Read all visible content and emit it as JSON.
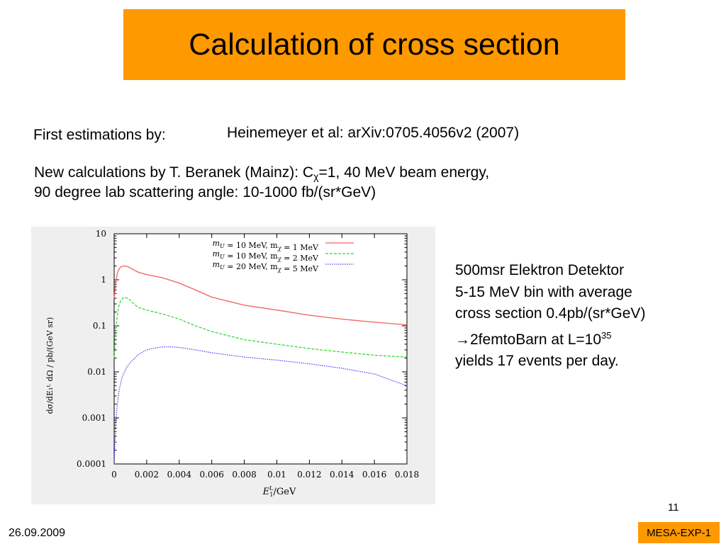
{
  "slide": {
    "title": "Calculation of cross section",
    "first_estimations_label": "First estimations by:",
    "first_estimations_ref": "Heinemeyer et al: arXiv:0705.4056v2 (2007)",
    "new_calc_line1_pre": "New calculations by T. Beranek (Mainz): C",
    "new_calc_sub": "χ",
    "new_calc_line1_post": "=1, 40 MeV beam energy,",
    "new_calc_line2": "90 degree lab scattering angle: 10-1000 fb/(sr*GeV)",
    "note_line1": "500msr Elektron  Detektor",
    "note_line2": "5-15 MeV bin with average",
    "note_line3": "cross section 0.4pb/(sr*GeV)",
    "note_arrow": "→",
    "note_line4_pre": "2femtoBarn at L=10",
    "note_line4_sup": "35",
    "note_line5": "yields 17 events per day.",
    "page_number": "11",
    "date": "26.09.2009",
    "tag": "MESA-EXP-1"
  },
  "chart_data": {
    "type": "line",
    "xlabel_main": "E",
    "xlabel_sup": "L",
    "xlabel_sub": "1",
    "xlabel_unit": "/GeV",
    "ylabel": "dσ/dE₁ᴸ dΩ / pb/(GeV sr)",
    "log_y": true,
    "xlim": [
      0,
      0.018
    ],
    "ylim": [
      0.0001,
      10
    ],
    "x_ticks": [
      "0",
      "0.002",
      "0.004",
      "0.006",
      "0.008",
      "0.01",
      "0.012",
      "0.014",
      "0.016",
      "0.018"
    ],
    "y_ticks": [
      "0.0001",
      "0.001",
      "0.01",
      "0.1",
      "1",
      "10"
    ],
    "legend_position": "top-right",
    "series": [
      {
        "name": "mU = 10 MeV, mχ = 1 MeV",
        "name_parts": [
          "m",
          "U",
          " = 10 MeV,  m",
          "χ",
          " = 1 MeV"
        ],
        "color": "#f0605a",
        "dash": "solid",
        "x": [
          0.0,
          0.0001,
          0.0002,
          0.0003,
          0.0004,
          0.0006,
          0.0008,
          0.001,
          0.0012,
          0.0015,
          0.002,
          0.003,
          0.004,
          0.005,
          0.006,
          0.008,
          0.01,
          0.012,
          0.014,
          0.016,
          0.018
        ],
        "y": [
          0.4,
          0.9,
          1.4,
          1.7,
          1.9,
          2.0,
          1.95,
          1.8,
          1.65,
          1.45,
          1.3,
          1.1,
          0.85,
          0.6,
          0.42,
          0.28,
          0.22,
          0.17,
          0.14,
          0.12,
          0.105
        ]
      },
      {
        "name": "mU = 10 MeV, mχ = 2 MeV",
        "name_parts": [
          "m",
          "U",
          " = 10 MeV,  m",
          "χ",
          " = 2 MeV"
        ],
        "color": "#33dd33",
        "dash": "dashed",
        "x": [
          0.0,
          0.0001,
          0.0002,
          0.0003,
          0.0004,
          0.0006,
          0.0008,
          0.001,
          0.0012,
          0.0015,
          0.002,
          0.003,
          0.004,
          0.005,
          0.006,
          0.008,
          0.01,
          0.012,
          0.014,
          0.016,
          0.018
        ],
        "y": [
          0.02,
          0.08,
          0.18,
          0.28,
          0.35,
          0.42,
          0.4,
          0.36,
          0.3,
          0.25,
          0.22,
          0.18,
          0.14,
          0.1,
          0.075,
          0.05,
          0.04,
          0.032,
          0.027,
          0.023,
          0.021
        ]
      },
      {
        "name": "mU = 20 MeV, mχ = 5 MeV",
        "name_parts": [
          "m",
          "U",
          " = 20 MeV,  m",
          "χ",
          " = 5 MeV"
        ],
        "color": "#4c4cf0",
        "dash": "dotted",
        "x": [
          0.0,
          0.0001,
          0.0002,
          0.0003,
          0.0005,
          0.0008,
          0.001,
          0.0015,
          0.002,
          0.0025,
          0.003,
          0.0035,
          0.004,
          0.005,
          0.006,
          0.008,
          0.01,
          0.012,
          0.014,
          0.016,
          0.018
        ],
        "y": [
          0.0001,
          0.0008,
          0.002,
          0.004,
          0.008,
          0.013,
          0.016,
          0.024,
          0.03,
          0.033,
          0.035,
          0.035,
          0.034,
          0.03,
          0.026,
          0.021,
          0.018,
          0.015,
          0.012,
          0.009,
          0.005
        ]
      }
    ]
  }
}
